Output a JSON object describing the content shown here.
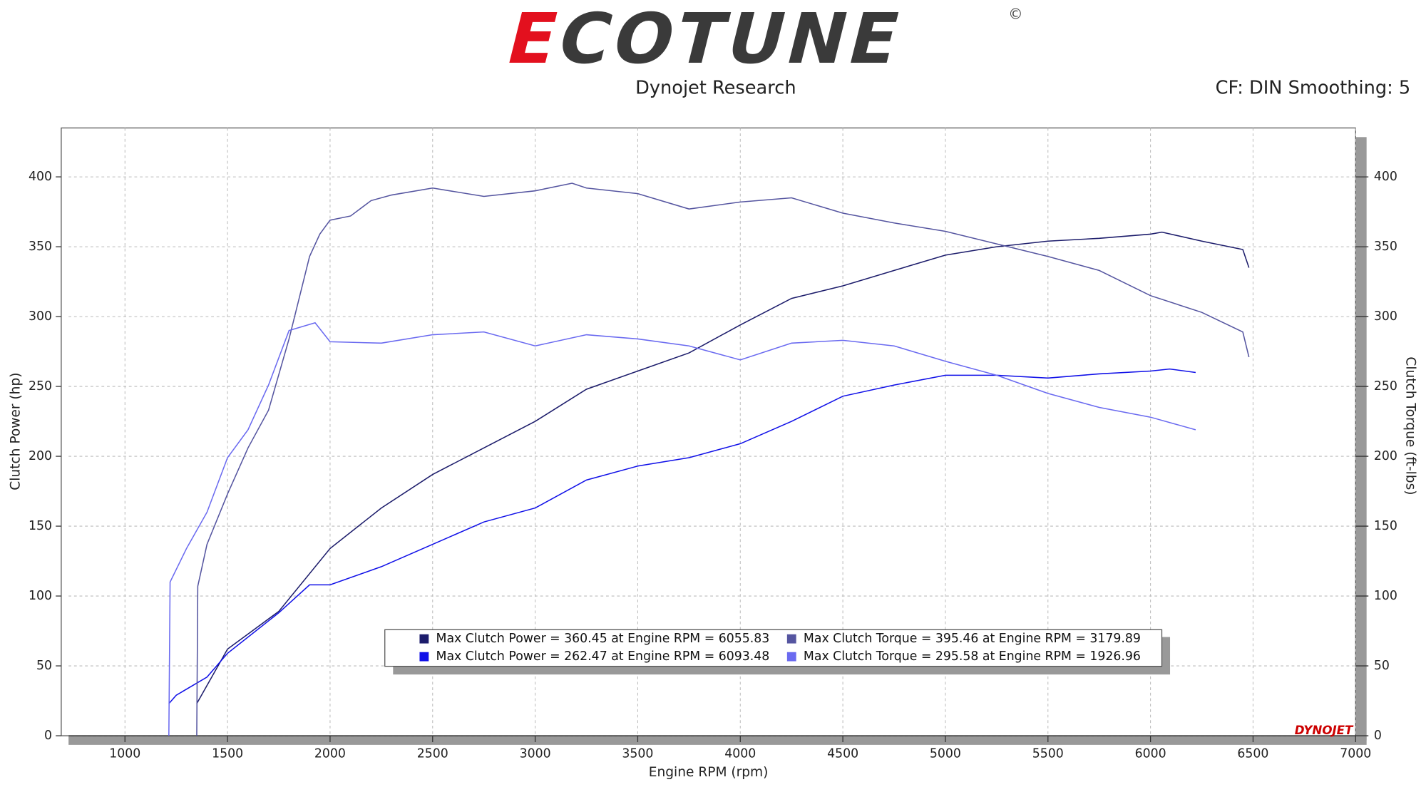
{
  "header": {
    "logo": "ECOTUNE",
    "logo_mark": "©",
    "source": "Dynojet Research",
    "settings": "CF: DIN Smoothing: 5",
    "brand": "DYNOJET"
  },
  "chart_data": {
    "type": "line",
    "x_label": "Engine RPM (rpm)",
    "y_label": "Clutch Power (hp)",
    "y2_label": "Clutch Torque (ft-lbs)",
    "xlim": [
      725,
      7000
    ],
    "xticks": [
      1000,
      1500,
      2000,
      2500,
      3000,
      3500,
      4000,
      4500,
      5000,
      5500,
      6000,
      6500,
      7000
    ],
    "ylim": [
      0,
      435
    ],
    "yticks": [
      0,
      50,
      100,
      150,
      200,
      250,
      300,
      350,
      400
    ],
    "y2lim": [
      0,
      435
    ],
    "y2ticks": [
      0,
      50,
      100,
      150,
      200,
      250,
      300,
      350,
      400
    ],
    "grid": true,
    "series": [
      {
        "name": "Max Clutch Power = 360.45 at Engine RPM = 6055.83",
        "color": "#1c1c6b",
        "axis": "y",
        "x": [
          1350,
          1500,
          1750,
          2000,
          2250,
          2500,
          2750,
          3000,
          3250,
          3500,
          3750,
          4000,
          4250,
          4500,
          4750,
          5000,
          5250,
          5500,
          5750,
          6000,
          6055.83,
          6250,
          6450,
          6480
        ],
        "values": [
          23,
          62,
          89,
          134,
          163,
          187,
          206,
          225,
          248,
          261,
          274,
          294,
          313,
          322,
          333,
          344,
          350,
          354,
          356,
          359,
          360.45,
          354,
          348,
          335
        ]
      },
      {
        "name": "Max Clutch Power = 262.47 at Engine RPM = 6093.48",
        "color": "#1010e8",
        "axis": "y",
        "x": [
          1214,
          1250,
          1400,
          1500,
          1750,
          1900,
          2000,
          2250,
          2500,
          2750,
          3000,
          3250,
          3500,
          3750,
          4000,
          4250,
          4500,
          4750,
          5000,
          5250,
          5500,
          5750,
          6000,
          6093.48,
          6220
        ],
        "values": [
          23,
          29,
          42,
          59,
          88,
          108,
          108,
          121,
          137,
          153,
          163,
          183,
          193,
          199,
          209,
          225,
          243,
          251,
          258,
          258,
          256,
          259,
          261,
          262.47,
          260
        ]
      },
      {
        "name": "Max Clutch Torque = 395.46 at Engine RPM = 3179.89",
        "color": "#5555a0",
        "axis": "y2",
        "x": [
          1350,
          1355,
          1400,
          1500,
          1600,
          1700,
          1800,
          1900,
          1950,
          2000,
          2100,
          2200,
          2300,
          2500,
          2750,
          3000,
          3179.89,
          3250,
          3500,
          3750,
          4000,
          4250,
          4500,
          4750,
          5000,
          5250,
          5500,
          5750,
          6000,
          6250,
          6450,
          6480
        ],
        "values": [
          0,
          107,
          137,
          173,
          206,
          233,
          284,
          343,
          359,
          369,
          372,
          383,
          387,
          392,
          386,
          390,
          395.46,
          392,
          388,
          377,
          382,
          385,
          374,
          367,
          361,
          352,
          343,
          333,
          315,
          303,
          289,
          271
        ]
      },
      {
        "name": "Max Clutch Torque = 295.58 at Engine RPM = 1926.96",
        "color": "#6a6af0",
        "axis": "y2",
        "x": [
          1214,
          1220,
          1300,
          1400,
          1500,
          1600,
          1700,
          1800,
          1926.96,
          2000,
          2250,
          2500,
          2750,
          3000,
          3250,
          3500,
          3750,
          4000,
          4250,
          4500,
          4750,
          5000,
          5250,
          5500,
          5750,
          6000,
          6220
        ],
        "values": [
          0,
          110,
          134,
          160,
          199,
          219,
          251,
          290,
          295.58,
          282,
          281,
          287,
          289,
          279,
          287,
          284,
          279,
          269,
          281,
          283,
          279,
          268,
          258,
          245,
          235,
          228,
          219
        ]
      }
    ]
  }
}
